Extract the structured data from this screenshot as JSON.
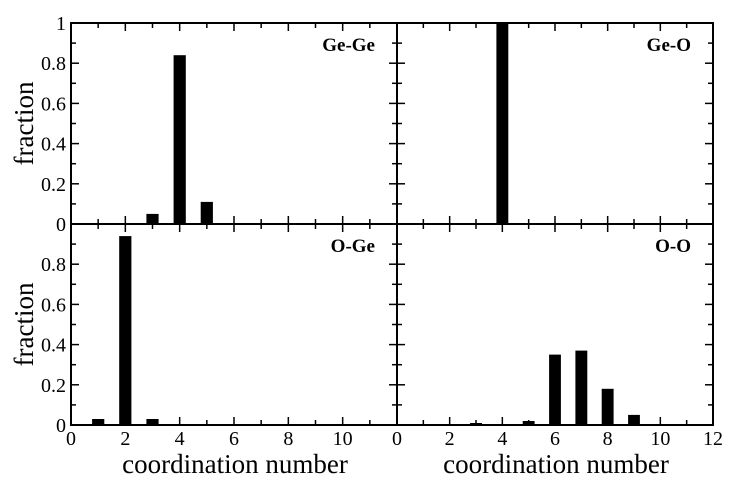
{
  "chart_data": [
    {
      "type": "bar",
      "title": "Ge-Ge",
      "xlabel": "",
      "ylabel": "fraction",
      "xlim": [
        0,
        12
      ],
      "ylim": [
        0,
        1
      ],
      "x": [
        3,
        4,
        5
      ],
      "values": [
        0.05,
        0.84,
        0.11
      ],
      "yticks": [
        "0",
        "0.2",
        "0.4",
        "0.6",
        "0.8",
        "1"
      ],
      "xticks": []
    },
    {
      "type": "bar",
      "title": "Ge-O",
      "xlabel": "",
      "ylabel": "",
      "xlim": [
        0,
        12
      ],
      "ylim": [
        0,
        1
      ],
      "x": [
        4
      ],
      "values": [
        1.0
      ],
      "yticks": [],
      "xticks": []
    },
    {
      "type": "bar",
      "title": "O-Ge",
      "xlabel": "coordination number",
      "ylabel": "fraction",
      "xlim": [
        0,
        12
      ],
      "ylim": [
        0,
        1
      ],
      "x": [
        1,
        2,
        3
      ],
      "values": [
        0.03,
        0.94,
        0.03
      ],
      "yticks": [
        "0",
        "0.2",
        "0.4",
        "0.6",
        "0.8"
      ],
      "xticks": [
        "0",
        "2",
        "4",
        "6",
        "8",
        "10"
      ]
    },
    {
      "type": "bar",
      "title": "O-O",
      "xlabel": "coordination number",
      "ylabel": "",
      "xlim": [
        0,
        12
      ],
      "ylim": [
        0,
        1
      ],
      "x": [
        3,
        4,
        5,
        6,
        7,
        8,
        9
      ],
      "values": [
        0.01,
        0.005,
        0.02,
        0.35,
        0.37,
        0.18,
        0.05
      ],
      "yticks": [],
      "xticks": [
        "0",
        "2",
        "4",
        "6",
        "8",
        "10",
        "12"
      ]
    }
  ]
}
